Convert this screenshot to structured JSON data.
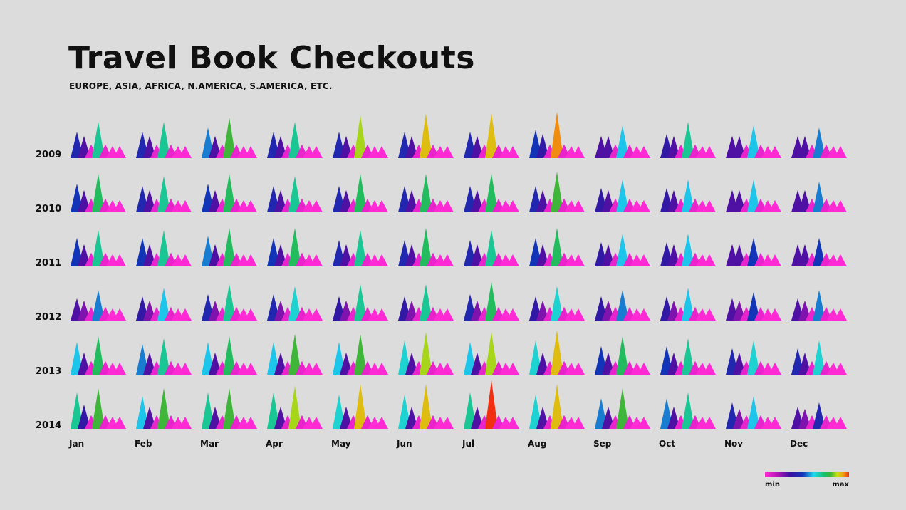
{
  "title": "Travel Book Checkouts",
  "subtitle": "EUROPE, ASIA, AFRICA, N.AMERICA, S.AMERICA, ETC.",
  "legend": {
    "min_label": "min",
    "max_label": "max"
  },
  "chart_data": {
    "type": "small-multiples-triangles",
    "title": "Travel Book Checkouts",
    "subtitle": "EUROPE, ASIA, AFRICA, N.AMERICA, S.AMERICA, ETC.",
    "years": [
      "2009",
      "2010",
      "2011",
      "2012",
      "2013",
      "2014"
    ],
    "months": [
      "Jan",
      "Feb",
      "Mar",
      "Apr",
      "May",
      "Jun",
      "Jul",
      "Aug",
      "Sep",
      "Oct",
      "Nov",
      "Dec"
    ],
    "peaks_per_cell": 7,
    "value_scale": [
      0,
      1
    ],
    "color_scale": {
      "min": "#ff2ad4",
      "max": "#f03010"
    },
    "values": [
      [
        [
          0.5,
          0.42,
          0.26,
          0.69,
          0.26,
          0.23,
          0.23
        ],
        [
          0.5,
          0.42,
          0.26,
          0.69,
          0.26,
          0.23,
          0.23
        ],
        [
          0.58,
          0.42,
          0.26,
          0.77,
          0.26,
          0.23,
          0.23
        ],
        [
          0.5,
          0.42,
          0.26,
          0.69,
          0.26,
          0.23,
          0.23
        ],
        [
          0.5,
          0.42,
          0.26,
          0.81,
          0.26,
          0.23,
          0.23
        ],
        [
          0.5,
          0.42,
          0.26,
          0.85,
          0.26,
          0.23,
          0.23
        ],
        [
          0.5,
          0.42,
          0.26,
          0.85,
          0.26,
          0.23,
          0.23
        ],
        [
          0.54,
          0.46,
          0.26,
          0.88,
          0.26,
          0.23,
          0.23
        ],
        [
          0.42,
          0.42,
          0.26,
          0.62,
          0.26,
          0.23,
          0.23
        ],
        [
          0.46,
          0.42,
          0.26,
          0.69,
          0.26,
          0.23,
          0.23
        ],
        [
          0.42,
          0.42,
          0.26,
          0.62,
          0.26,
          0.23,
          0.23
        ],
        [
          0.42,
          0.42,
          0.26,
          0.58,
          0.26,
          0.23,
          0.23
        ]
      ],
      [
        [
          0.54,
          0.42,
          0.26,
          0.73,
          0.26,
          0.23,
          0.23
        ],
        [
          0.5,
          0.42,
          0.26,
          0.69,
          0.26,
          0.23,
          0.23
        ],
        [
          0.54,
          0.42,
          0.26,
          0.73,
          0.26,
          0.23,
          0.23
        ],
        [
          0.5,
          0.42,
          0.26,
          0.69,
          0.26,
          0.23,
          0.23
        ],
        [
          0.5,
          0.42,
          0.26,
          0.73,
          0.26,
          0.23,
          0.23
        ],
        [
          0.5,
          0.42,
          0.26,
          0.73,
          0.26,
          0.23,
          0.23
        ],
        [
          0.5,
          0.42,
          0.26,
          0.73,
          0.26,
          0.23,
          0.23
        ],
        [
          0.5,
          0.42,
          0.26,
          0.77,
          0.26,
          0.23,
          0.23
        ],
        [
          0.46,
          0.42,
          0.26,
          0.62,
          0.26,
          0.23,
          0.23
        ],
        [
          0.46,
          0.42,
          0.26,
          0.62,
          0.26,
          0.23,
          0.23
        ],
        [
          0.42,
          0.42,
          0.26,
          0.62,
          0.26,
          0.23,
          0.23
        ],
        [
          0.42,
          0.42,
          0.26,
          0.58,
          0.26,
          0.23,
          0.23
        ]
      ],
      [
        [
          0.54,
          0.42,
          0.26,
          0.69,
          0.26,
          0.23,
          0.23
        ],
        [
          0.54,
          0.42,
          0.26,
          0.69,
          0.26,
          0.23,
          0.23
        ],
        [
          0.58,
          0.42,
          0.26,
          0.73,
          0.26,
          0.23,
          0.23
        ],
        [
          0.54,
          0.42,
          0.26,
          0.73,
          0.26,
          0.23,
          0.23
        ],
        [
          0.5,
          0.42,
          0.26,
          0.69,
          0.26,
          0.23,
          0.23
        ],
        [
          0.5,
          0.42,
          0.26,
          0.73,
          0.26,
          0.23,
          0.23
        ],
        [
          0.5,
          0.42,
          0.26,
          0.69,
          0.26,
          0.23,
          0.23
        ],
        [
          0.54,
          0.42,
          0.26,
          0.73,
          0.26,
          0.23,
          0.23
        ],
        [
          0.46,
          0.42,
          0.26,
          0.62,
          0.26,
          0.23,
          0.23
        ],
        [
          0.46,
          0.42,
          0.26,
          0.62,
          0.26,
          0.23,
          0.23
        ],
        [
          0.42,
          0.42,
          0.26,
          0.54,
          0.26,
          0.23,
          0.23
        ],
        [
          0.42,
          0.42,
          0.26,
          0.54,
          0.26,
          0.23,
          0.23
        ]
      ],
      [
        [
          0.42,
          0.38,
          0.26,
          0.58,
          0.26,
          0.23,
          0.23
        ],
        [
          0.46,
          0.38,
          0.26,
          0.62,
          0.26,
          0.23,
          0.23
        ],
        [
          0.5,
          0.38,
          0.26,
          0.69,
          0.26,
          0.23,
          0.23
        ],
        [
          0.5,
          0.38,
          0.26,
          0.65,
          0.26,
          0.23,
          0.23
        ],
        [
          0.46,
          0.38,
          0.26,
          0.69,
          0.26,
          0.23,
          0.23
        ],
        [
          0.46,
          0.38,
          0.26,
          0.69,
          0.26,
          0.23,
          0.23
        ],
        [
          0.5,
          0.38,
          0.26,
          0.73,
          0.26,
          0.23,
          0.23
        ],
        [
          0.46,
          0.38,
          0.26,
          0.65,
          0.26,
          0.23,
          0.23
        ],
        [
          0.46,
          0.38,
          0.26,
          0.58,
          0.26,
          0.23,
          0.23
        ],
        [
          0.46,
          0.38,
          0.26,
          0.62,
          0.26,
          0.23,
          0.23
        ],
        [
          0.42,
          0.38,
          0.26,
          0.54,
          0.26,
          0.23,
          0.23
        ],
        [
          0.42,
          0.38,
          0.26,
          0.58,
          0.26,
          0.23,
          0.23
        ]
      ],
      [
        [
          0.62,
          0.42,
          0.26,
          0.73,
          0.26,
          0.23,
          0.23
        ],
        [
          0.58,
          0.42,
          0.26,
          0.69,
          0.26,
          0.23,
          0.23
        ],
        [
          0.62,
          0.42,
          0.26,
          0.73,
          0.26,
          0.23,
          0.23
        ],
        [
          0.62,
          0.42,
          0.26,
          0.77,
          0.26,
          0.23,
          0.23
        ],
        [
          0.62,
          0.42,
          0.26,
          0.77,
          0.26,
          0.23,
          0.23
        ],
        [
          0.65,
          0.42,
          0.26,
          0.81,
          0.26,
          0.23,
          0.23
        ],
        [
          0.62,
          0.42,
          0.26,
          0.81,
          0.26,
          0.23,
          0.23
        ],
        [
          0.65,
          0.42,
          0.26,
          0.85,
          0.26,
          0.23,
          0.23
        ],
        [
          0.54,
          0.42,
          0.26,
          0.73,
          0.26,
          0.23,
          0.23
        ],
        [
          0.54,
          0.42,
          0.26,
          0.69,
          0.26,
          0.23,
          0.23
        ],
        [
          0.5,
          0.42,
          0.26,
          0.65,
          0.26,
          0.23,
          0.23
        ],
        [
          0.5,
          0.42,
          0.26,
          0.65,
          0.26,
          0.23,
          0.23
        ]
      ],
      [
        [
          0.69,
          0.46,
          0.26,
          0.77,
          0.26,
          0.23,
          0.23
        ],
        [
          0.62,
          0.42,
          0.26,
          0.77,
          0.26,
          0.23,
          0.23
        ],
        [
          0.69,
          0.42,
          0.26,
          0.77,
          0.26,
          0.23,
          0.23
        ],
        [
          0.69,
          0.42,
          0.26,
          0.81,
          0.26,
          0.23,
          0.23
        ],
        [
          0.65,
          0.42,
          0.26,
          0.85,
          0.26,
          0.23,
          0.23
        ],
        [
          0.65,
          0.42,
          0.26,
          0.85,
          0.26,
          0.23,
          0.23
        ],
        [
          0.69,
          0.42,
          0.26,
          0.92,
          0.26,
          0.23,
          0.23
        ],
        [
          0.65,
          0.42,
          0.26,
          0.85,
          0.26,
          0.23,
          0.23
        ],
        [
          0.58,
          0.42,
          0.26,
          0.77,
          0.26,
          0.23,
          0.23
        ],
        [
          0.58,
          0.42,
          0.26,
          0.69,
          0.26,
          0.23,
          0.23
        ],
        [
          0.5,
          0.38,
          0.26,
          0.62,
          0.26,
          0.23,
          0.23
        ],
        [
          0.42,
          0.38,
          0.26,
          0.5,
          0.26,
          0.23,
          0.23
        ]
      ]
    ]
  }
}
